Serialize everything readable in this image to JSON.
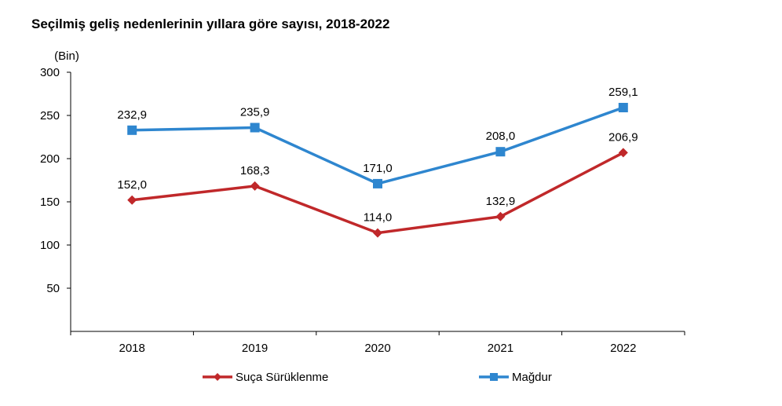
{
  "chart_data": {
    "type": "line",
    "title": "Seçilmiş geliş nedenlerinin yıllara göre sayısı, 2018-2022",
    "ylabel": "(Bin)",
    "xlabel": "",
    "categories": [
      "2018",
      "2019",
      "2020",
      "2021",
      "2022"
    ],
    "ylim": [
      0,
      300
    ],
    "yticks": [
      50,
      100,
      150,
      200,
      250,
      300
    ],
    "grid": false,
    "legend": "bottom",
    "series": [
      {
        "name": "Suça Sürüklenme",
        "values": [
          152.0,
          168.3,
          114.0,
          132.9,
          206.9
        ],
        "labels": [
          "152,0",
          "168,3",
          "114,0",
          "132,9",
          "206,9"
        ],
        "color": "#c0282a",
        "marker": "diamond"
      },
      {
        "name": "Mağdur",
        "values": [
          232.9,
          235.9,
          171.0,
          208.0,
          259.1
        ],
        "labels": [
          "232,9",
          "235,9",
          "171,0",
          "208,0",
          "259,1"
        ],
        "color": "#2e86cf",
        "marker": "square"
      }
    ]
  }
}
